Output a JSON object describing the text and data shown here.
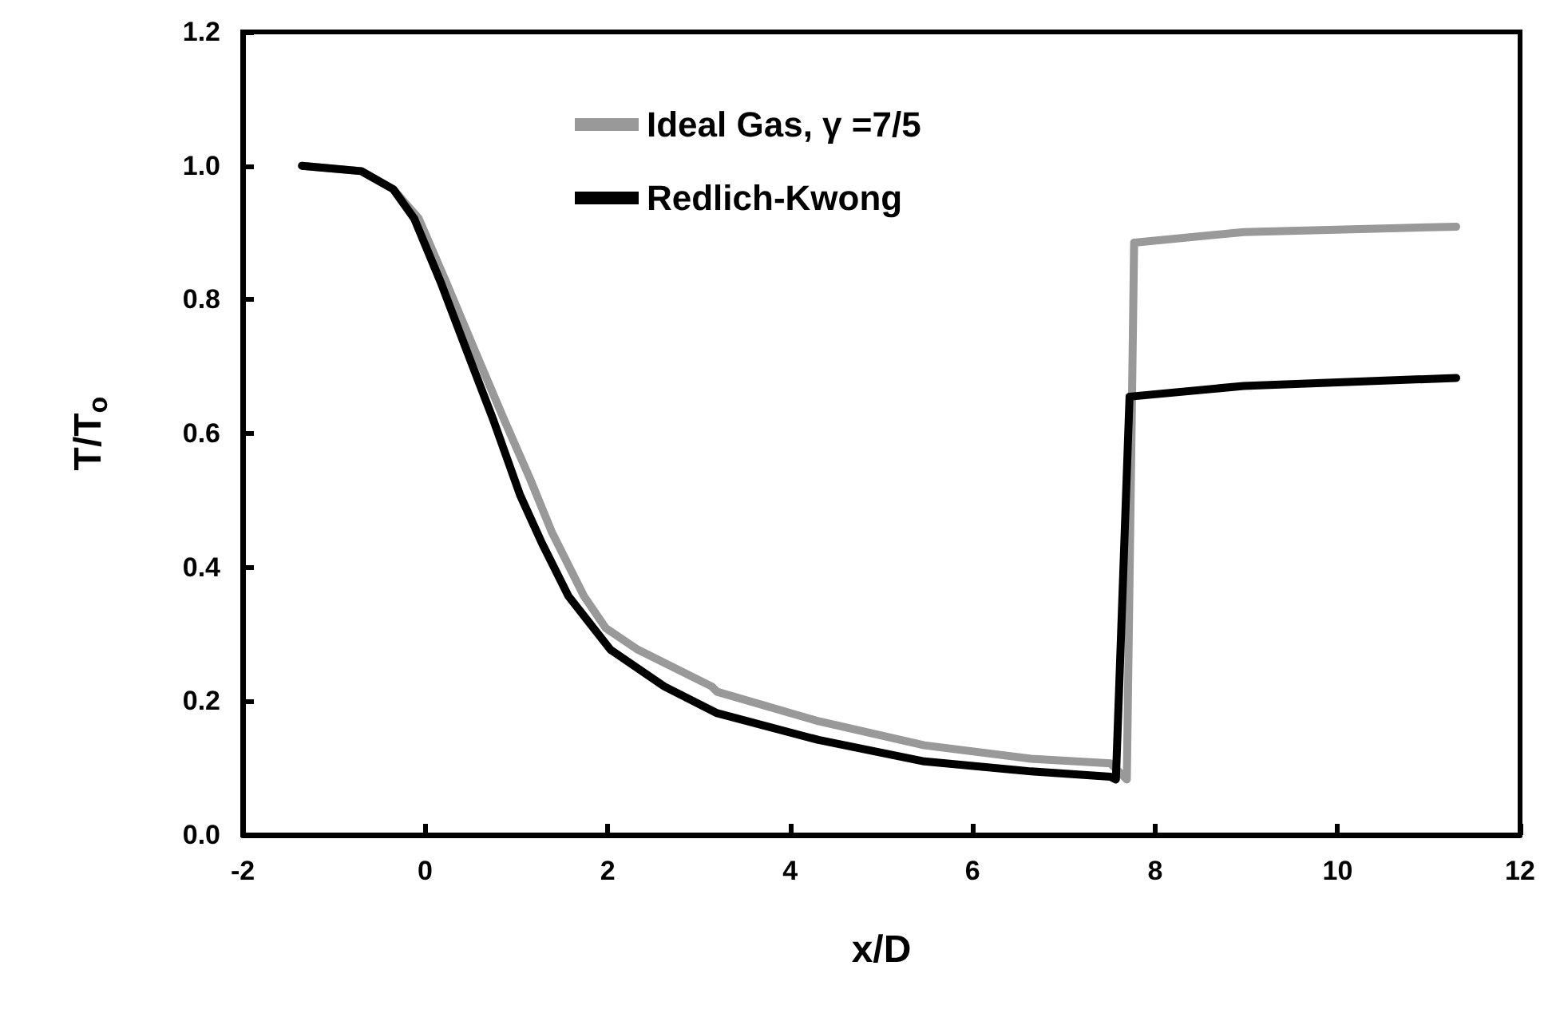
{
  "chart_data": {
    "type": "line",
    "xlabel": "x/D",
    "ylabel": "T/T$_{o}$",
    "xlim": [
      -2,
      12
    ],
    "xticks": [
      -2,
      0,
      2,
      4,
      6,
      8,
      10,
      12
    ],
    "ylim": [
      0,
      1.2
    ],
    "yticks": [
      {
        "value": 0,
        "label": "0.0"
      },
      {
        "value": 0.2,
        "label": "0.2"
      },
      {
        "value": 0.4,
        "label": "0.4"
      },
      {
        "value": 0.6,
        "label": "0.6"
      },
      {
        "value": 0.8,
        "label": "0.8"
      },
      {
        "value": 1.0,
        "label": "1.0"
      },
      {
        "value": 1.2,
        "label": "1.2"
      }
    ],
    "grid": false,
    "legend": "top",
    "marker": "none",
    "line_style": "solid",
    "series": [
      {
        "name": "Ideal Gas, γ =7/5",
        "color": "#999999",
        "x": [
          -1.35,
          -0.7,
          -0.35,
          -0.07,
          0.23,
          0.55,
          0.87,
          1.15,
          1.39,
          1.74,
          1.98,
          2.33,
          3.14,
          3.2,
          4.31,
          5.47,
          6.64,
          7.51,
          7.69,
          7.77,
          8.97,
          11.3
        ],
        "values": [
          1.0,
          0.992,
          0.965,
          0.921,
          0.826,
          0.722,
          0.619,
          0.532,
          0.452,
          0.357,
          0.309,
          0.277,
          0.222,
          0.214,
          0.17,
          0.134,
          0.114,
          0.107,
          0.083,
          0.885,
          0.901,
          0.909
        ]
      },
      {
        "name": "Redlich-Kwong",
        "color": "#000000",
        "x": [
          -1.35,
          -0.7,
          -0.35,
          -0.12,
          0.17,
          0.46,
          0.75,
          1.04,
          1.28,
          1.57,
          2.03,
          2.62,
          3.2,
          4.31,
          5.47,
          6.64,
          7.51,
          7.57,
          7.72,
          8.97,
          11.3
        ],
        "values": [
          1.0,
          0.992,
          0.965,
          0.921,
          0.826,
          0.722,
          0.619,
          0.508,
          0.436,
          0.357,
          0.277,
          0.222,
          0.182,
          0.142,
          0.11,
          0.095,
          0.087,
          0.083,
          0.655,
          0.671,
          0.683
        ]
      }
    ]
  }
}
